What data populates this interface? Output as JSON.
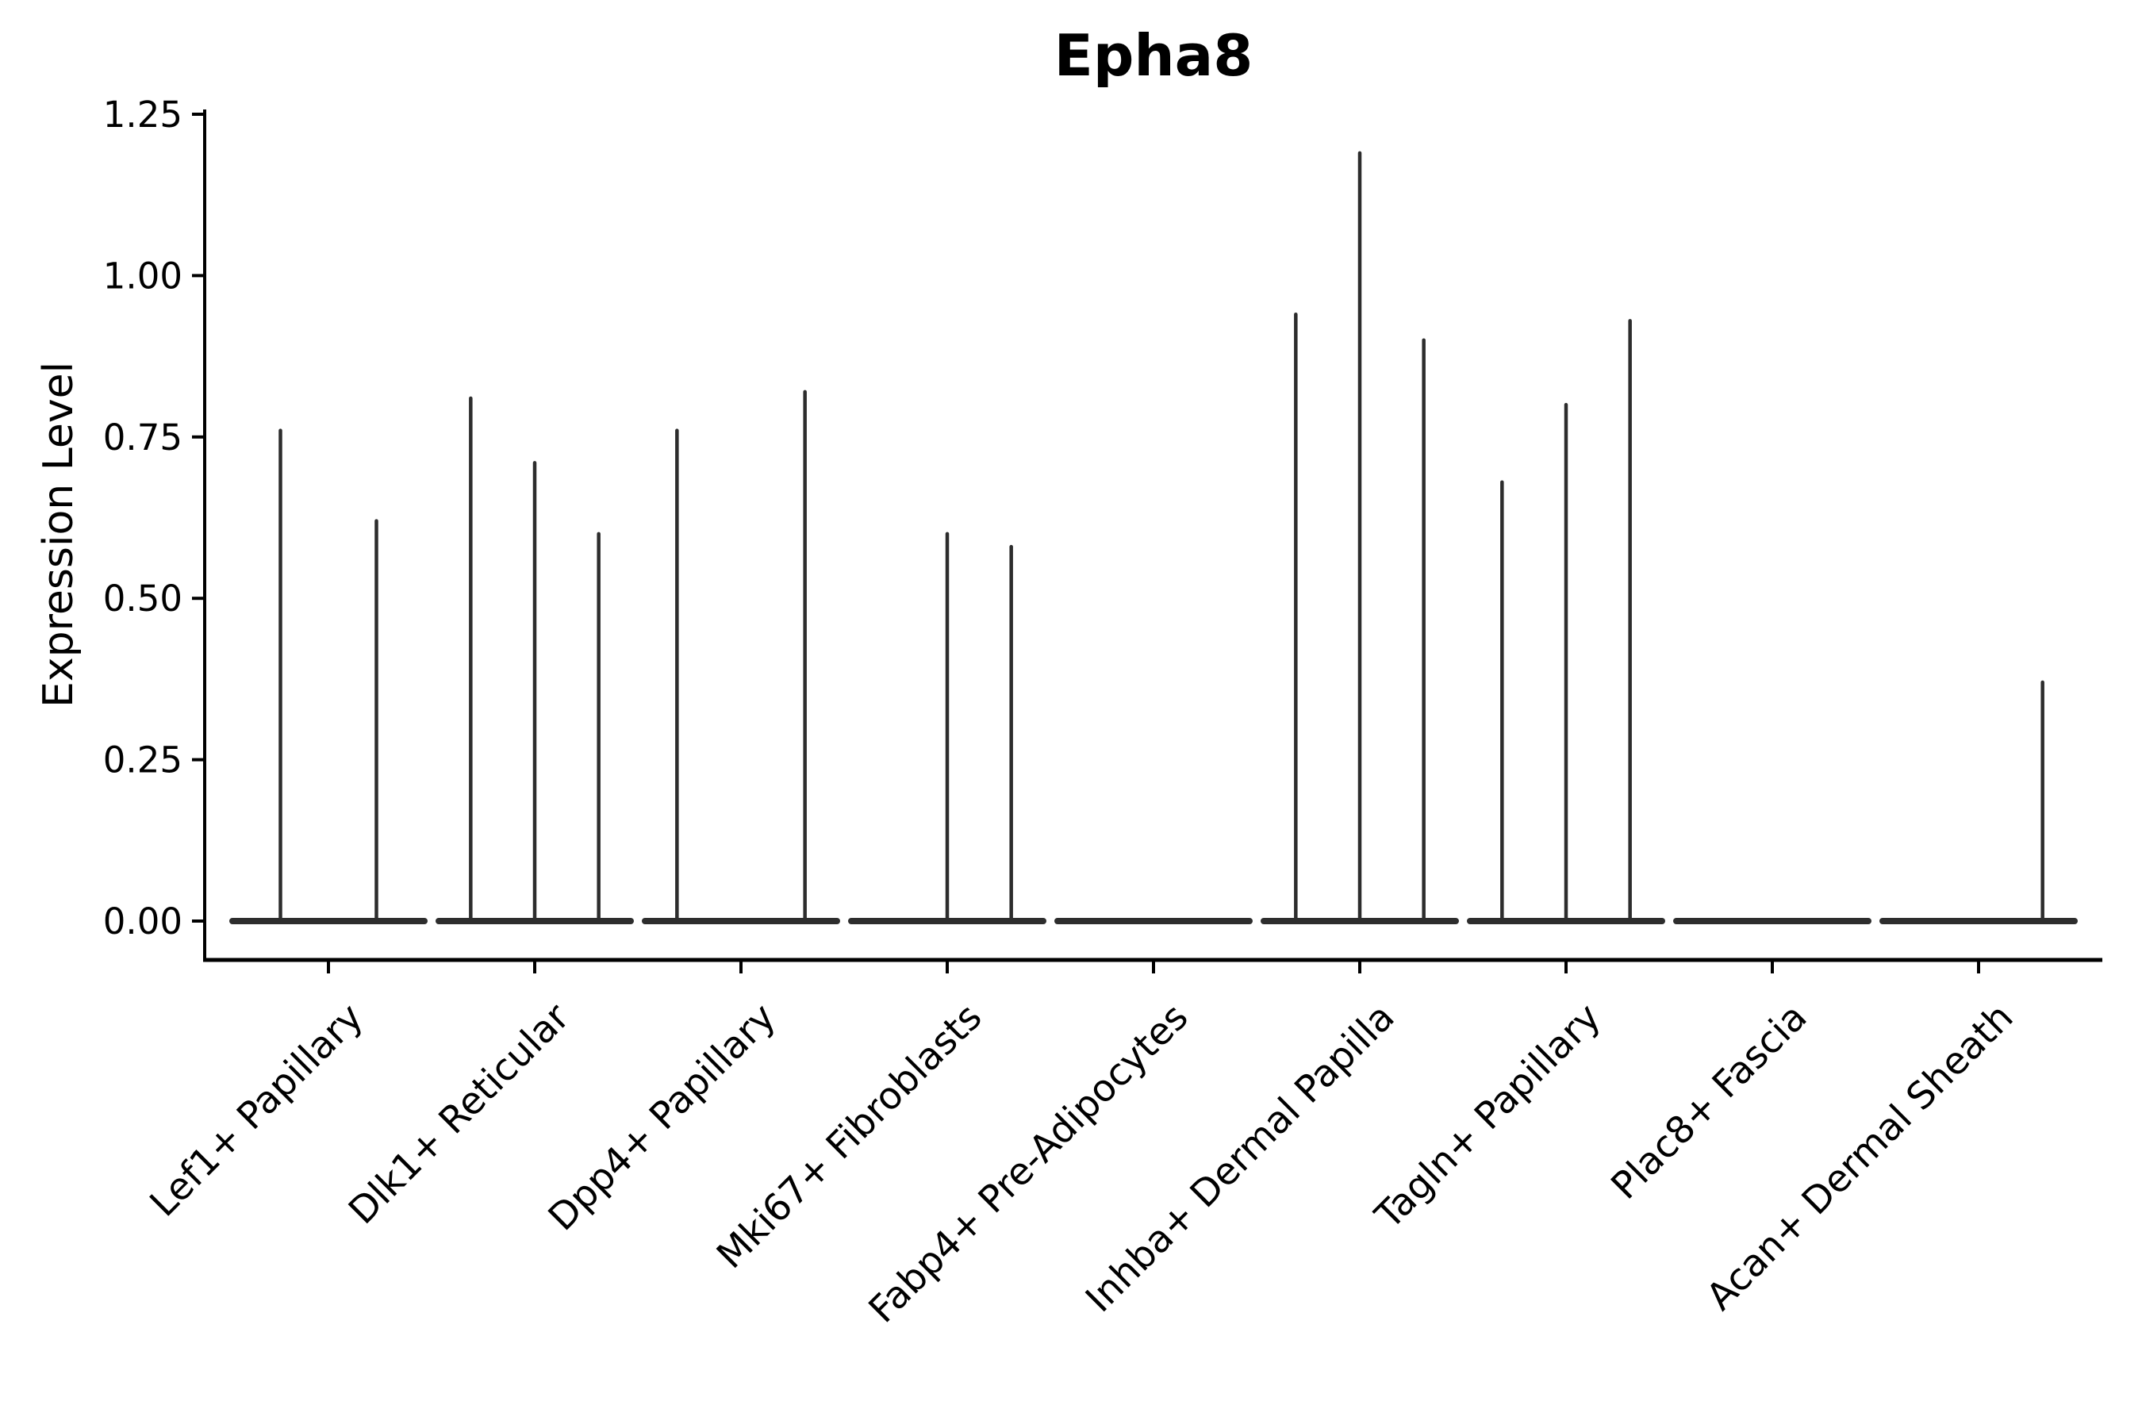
{
  "figure": {
    "title": "Epha8"
  },
  "chart_data": {
    "type": "violin",
    "title": "Epha8",
    "xlabel": "",
    "ylabel": "Expression Level",
    "ylim": [
      0,
      1.25
    ],
    "grid": false,
    "legend": "none",
    "y_axis": {
      "label": "Expression Level",
      "ticks": [
        {
          "value": 0.0,
          "label": "0.00"
        },
        {
          "value": 0.25,
          "label": "0.25"
        },
        {
          "value": 0.5,
          "label": "0.50"
        },
        {
          "value": 0.75,
          "label": "0.75"
        },
        {
          "value": 1.0,
          "label": "1.00"
        },
        {
          "value": 1.25,
          "label": "1.25"
        }
      ]
    },
    "categories": [
      {
        "label": "Lef1+ Papillary",
        "violins": [
          0.76,
          0.62
        ]
      },
      {
        "label": "Dlk1+ Reticular",
        "violins": [
          0.81,
          0.71,
          0.6
        ]
      },
      {
        "label": "Dpp4+ Papillary",
        "violins": [
          0.76,
          null,
          0.82
        ]
      },
      {
        "label": "Mki67+ Fibroblasts",
        "violins": [
          null,
          0.6,
          0.58
        ]
      },
      {
        "label": "Fabp4+ Pre-Adipocytes",
        "violins": [
          null,
          null,
          null
        ]
      },
      {
        "label": "Inhba+ Dermal Papilla",
        "violins": [
          0.94,
          1.19,
          0.9
        ]
      },
      {
        "label": "Tagln+ Papillary",
        "violins": [
          0.68,
          0.8,
          0.93
        ]
      },
      {
        "label": "Plac8+ Fascia",
        "violins": [
          null,
          null,
          null
        ]
      },
      {
        "label": "Acan+ Dermal Sheath",
        "violins": [
          null,
          null,
          0.37
        ]
      }
    ],
    "colors": {
      "violin": "#2d2d2d",
      "axis": "#000000",
      "text": "#000000",
      "background": "#ffffff"
    }
  }
}
